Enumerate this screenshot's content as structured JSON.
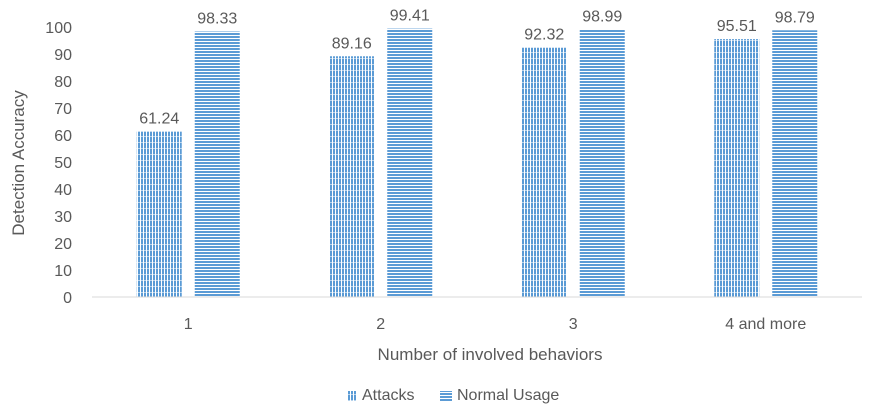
{
  "chart_data": {
    "type": "bar",
    "categories": [
      "1",
      "2",
      "3",
      "4 and more"
    ],
    "series": [
      {
        "name": "Attacks",
        "values": [
          61.24,
          89.16,
          92.32,
          95.51
        ]
      },
      {
        "name": "Normal Usage",
        "values": [
          98.33,
          99.41,
          98.99,
          98.79
        ]
      }
    ],
    "data_labels": [
      [
        "61.24",
        "89.16",
        "92.32",
        "95.51"
      ],
      [
        "98.33",
        "99.41",
        "98.99",
        "98.79"
      ]
    ],
    "y_ticks": [
      0,
      10,
      20,
      30,
      40,
      50,
      60,
      70,
      80,
      90,
      100
    ],
    "xlabel": "Number of involved behaviors",
    "ylabel": "Detection Accuracy",
    "ylim": [
      0,
      100
    ],
    "grid": false,
    "legend_position": "bottom",
    "colors": {
      "Attacks": "#5b9bd5",
      "Normal Usage": "#5b9bd5",
      "axis": "#d9d9d9",
      "text": "#595959"
    },
    "patterns": {
      "Attacks": "vertical-lines",
      "Normal Usage": "horizontal-lines"
    }
  }
}
